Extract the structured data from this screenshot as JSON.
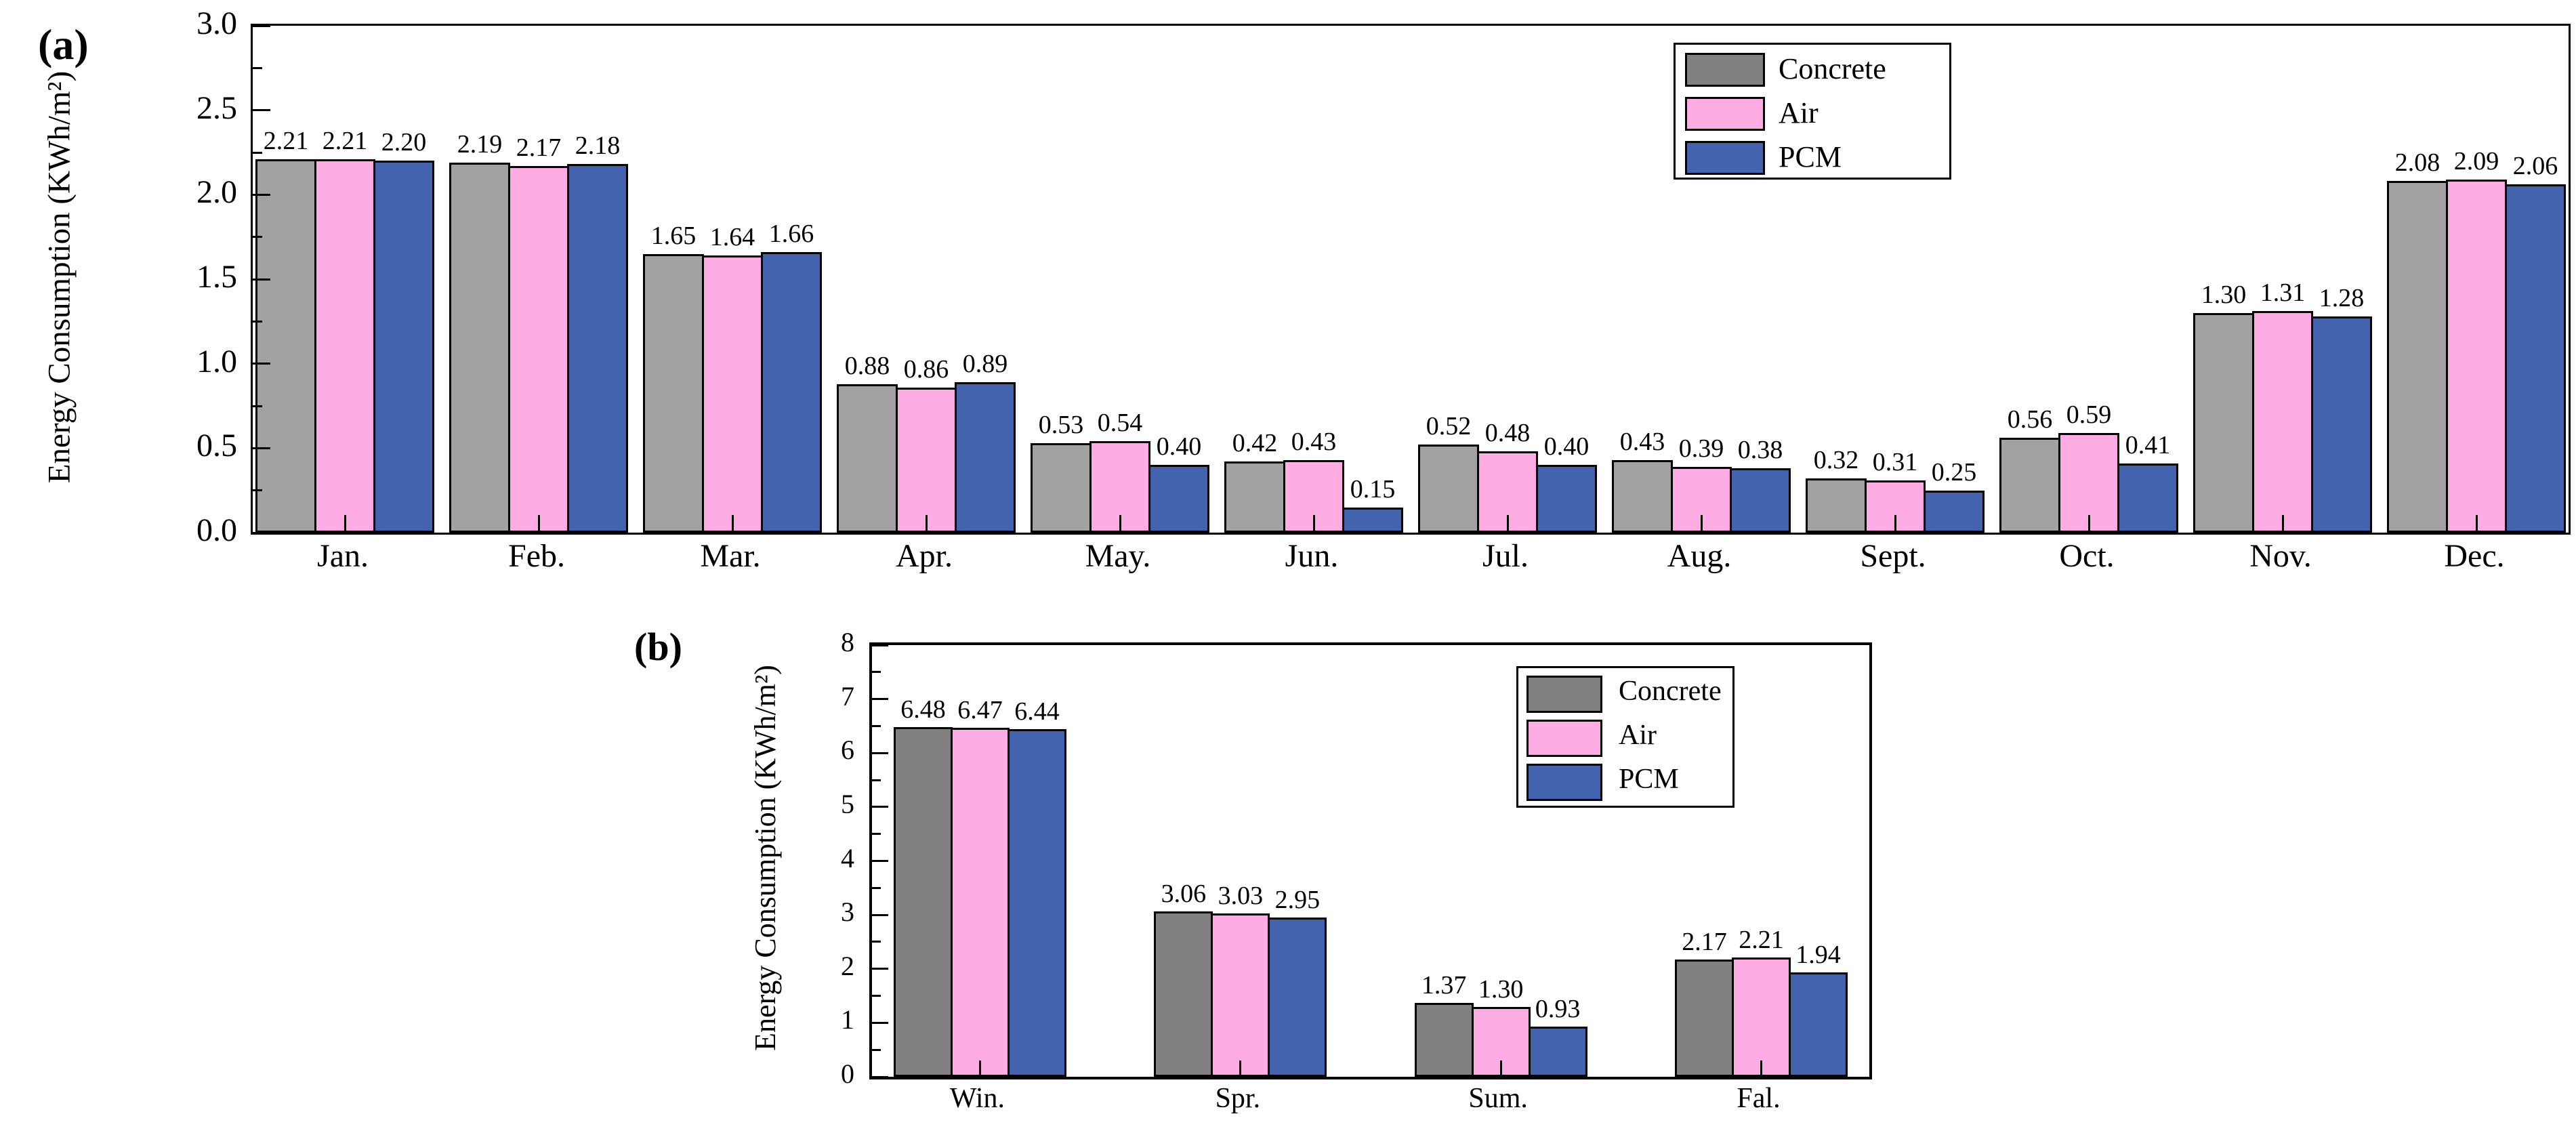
{
  "colors": {
    "concrete_bar_a": "#A2A2A2",
    "concrete_bar_b": "#818181",
    "air": "#FFACE4",
    "pcm": "#4363AE",
    "legend_concrete": "#818181",
    "axis": "#000000",
    "background": "#FFFFFF"
  },
  "chart_data": [
    {
      "id": "a",
      "type": "bar",
      "panel_label": "(a)",
      "ylabel": "Energy Consumption (KWh/m²)",
      "xlabel": "",
      "categories": [
        "Jan.",
        "Feb.",
        "Mar.",
        "Apr.",
        "May.",
        "Jun.",
        "Jul.",
        "Aug.",
        "Sept.",
        "Oct.",
        "Nov.",
        "Dec."
      ],
      "series": [
        {
          "name": "Concrete",
          "color": "#A2A2A2",
          "values": [
            2.21,
            2.19,
            1.65,
            0.88,
            0.53,
            0.42,
            0.52,
            0.43,
            0.32,
            0.56,
            1.3,
            2.08
          ]
        },
        {
          "name": "Air",
          "color": "#FFACE4",
          "values": [
            2.21,
            2.17,
            1.64,
            0.86,
            0.54,
            0.43,
            0.48,
            0.39,
            0.31,
            0.59,
            1.31,
            2.09
          ]
        },
        {
          "name": "PCM",
          "color": "#4363AE",
          "values": [
            2.2,
            2.18,
            1.66,
            0.89,
            0.4,
            0.15,
            0.4,
            0.38,
            0.25,
            0.41,
            1.28,
            2.06
          ]
        }
      ],
      "ylim": [
        0,
        3.0
      ],
      "ytick_step": 0.5,
      "yminor_step": 0.25,
      "ytick_decimals": 1,
      "value_label_decimals": 2,
      "grid": false,
      "legend": {
        "position": "top-right",
        "items": [
          "Concrete",
          "Air",
          "PCM"
        ],
        "swatch_colors": [
          "#818181",
          "#FFACE4",
          "#4363AE"
        ]
      }
    },
    {
      "id": "b",
      "type": "bar",
      "panel_label": "(b)",
      "ylabel": "Energy Consumption (KWh/m²)",
      "xlabel": "",
      "categories": [
        "Win.",
        "Spr.",
        "Sum.",
        "Fal."
      ],
      "series": [
        {
          "name": "Concrete",
          "color": "#818181",
          "values": [
            6.48,
            3.06,
            1.37,
            2.17
          ]
        },
        {
          "name": "Air",
          "color": "#FFACE4",
          "values": [
            6.47,
            3.03,
            1.3,
            2.21
          ]
        },
        {
          "name": "PCM",
          "color": "#4363AE",
          "values": [
            6.44,
            2.95,
            0.93,
            1.94
          ]
        }
      ],
      "ylim": [
        0,
        8
      ],
      "ytick_step": 1,
      "yminor_step": 0.5,
      "ytick_decimals": 0,
      "value_label_decimals": 2,
      "grid": false,
      "legend": {
        "position": "top-right",
        "items": [
          "Concrete",
          "Air",
          "PCM"
        ],
        "swatch_colors": [
          "#818181",
          "#FFACE4",
          "#4363AE"
        ]
      }
    }
  ]
}
